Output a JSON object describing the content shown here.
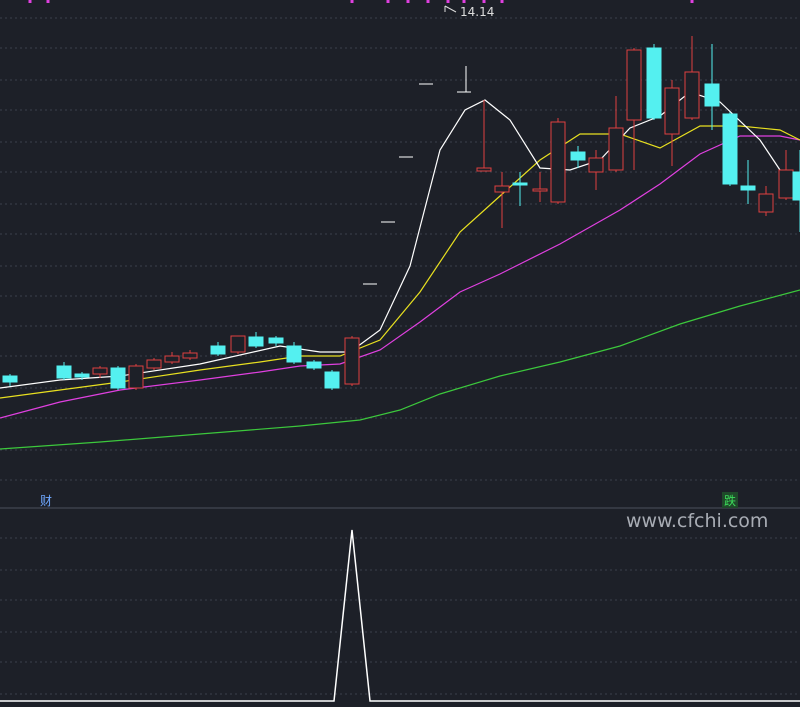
{
  "price_label": "14.14",
  "markers": {
    "left": "财",
    "right": "跌"
  },
  "watermark": "www.cfchi.com"
}
